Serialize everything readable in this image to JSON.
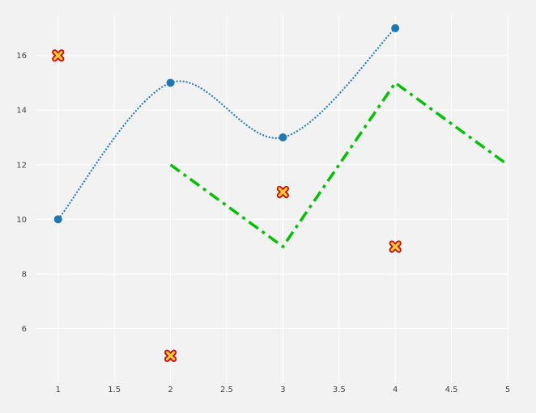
{
  "chart_data": {
    "type": "line",
    "title": "",
    "xlabel": "",
    "ylabel": "",
    "xlim": [
      0.8,
      5.0
    ],
    "ylim": [
      4.0,
      17.5
    ],
    "grid": true,
    "legend": "none",
    "x_ticks": [
      1,
      1.5,
      2,
      2.5,
      3,
      3.5,
      4,
      4.5,
      5
    ],
    "x_tick_labels": [
      "1",
      "1.5",
      "2",
      "2.5",
      "3",
      "3.5",
      "4",
      "4.5",
      "5"
    ],
    "y_ticks": [
      6,
      8,
      10,
      12,
      14,
      16
    ],
    "y_tick_labels": [
      "6",
      "8",
      "10",
      "12",
      "14",
      "16"
    ],
    "series": [
      {
        "kind": "spline-line-markers",
        "line_style": "dotted",
        "color": "#1f77b4",
        "marker": "circle",
        "x": [
          1,
          2,
          3,
          4
        ],
        "y": [
          10,
          15,
          13,
          17
        ]
      },
      {
        "kind": "markers",
        "marker": "x",
        "marker_fill": "#ffcc33",
        "marker_outline": "#cc0000",
        "x": [
          1,
          2,
          3,
          4
        ],
        "y": [
          16,
          5,
          11,
          9
        ]
      },
      {
        "kind": "line",
        "line_style": "dashdot",
        "color": "#00c000",
        "x": [
          2,
          3,
          4,
          5
        ],
        "y": [
          12,
          9,
          15,
          12
        ]
      }
    ]
  }
}
